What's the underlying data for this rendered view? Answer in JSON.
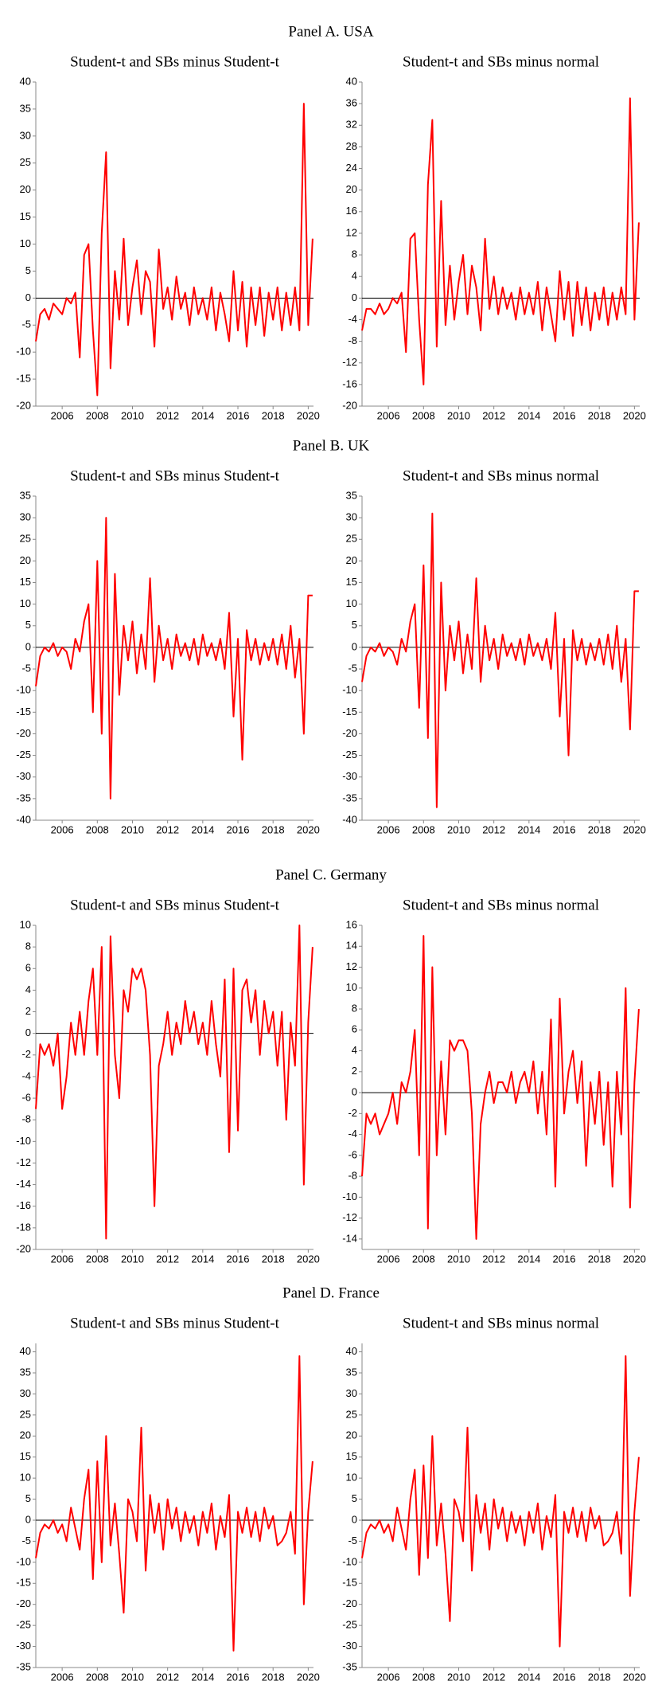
{
  "panels": [
    "Panel A. USA",
    "Panel B. UK",
    "Panel C. Germany",
    "Panel D. France"
  ],
  "chart_data": [
    {
      "type": "line",
      "title": "Student-t and SBs minus Student-t",
      "color": "#ff0000",
      "hline": 0,
      "xlim": [
        2004.5,
        2020.3
      ],
      "xticks": [
        2006,
        2008,
        2010,
        2012,
        2014,
        2016,
        2018,
        2020
      ],
      "ylim": [
        -20,
        40
      ],
      "yticks": [
        -20,
        -15,
        -10,
        -5,
        0,
        5,
        10,
        15,
        20,
        25,
        30,
        35,
        40
      ],
      "x": [
        2004.5,
        2004.75,
        2005,
        2005.25,
        2005.5,
        2005.75,
        2006,
        2006.25,
        2006.5,
        2006.75,
        2007,
        2007.25,
        2007.5,
        2007.75,
        2008,
        2008.25,
        2008.5,
        2008.75,
        2009,
        2009.25,
        2009.5,
        2009.75,
        2010,
        2010.25,
        2010.5,
        2010.75,
        2011,
        2011.25,
        2011.5,
        2011.75,
        2012,
        2012.25,
        2012.5,
        2012.75,
        2013,
        2013.25,
        2013.5,
        2013.75,
        2014,
        2014.25,
        2014.5,
        2014.75,
        2015,
        2015.25,
        2015.5,
        2015.75,
        2016,
        2016.25,
        2016.5,
        2016.75,
        2017,
        2017.25,
        2017.5,
        2017.75,
        2018,
        2018.25,
        2018.5,
        2018.75,
        2019,
        2019.25,
        2019.5,
        2019.75,
        2020,
        2020.25
      ],
      "values": [
        -8,
        -3,
        -2,
        -4,
        -1,
        -2,
        -3,
        0,
        -1,
        1,
        -11,
        8,
        10,
        -6,
        -18,
        12,
        27,
        -13,
        5,
        -4,
        11,
        -5,
        2,
        7,
        -3,
        5,
        3,
        -9,
        9,
        -2,
        2,
        -4,
        4,
        -2,
        1,
        -5,
        2,
        -3,
        0,
        -4,
        2,
        -6,
        1,
        -3,
        -8,
        5,
        -6,
        3,
        -9,
        2,
        -5,
        2,
        -7,
        1,
        -4,
        2,
        -6,
        1,
        -5,
        2,
        -6,
        36,
        -5,
        11
      ]
    },
    {
      "type": "line",
      "title": "Student-t and SBs minus normal",
      "color": "#ff0000",
      "hline": 0,
      "xlim": [
        2004.5,
        2020.3
      ],
      "xticks": [
        2006,
        2008,
        2010,
        2012,
        2014,
        2016,
        2018,
        2020
      ],
      "ylim": [
        -20,
        40
      ],
      "yticks": [
        -20,
        -16,
        -12,
        -8,
        -4,
        0,
        4,
        8,
        12,
        16,
        20,
        24,
        28,
        32,
        36,
        40
      ],
      "x": [
        2004.5,
        2004.75,
        2005,
        2005.25,
        2005.5,
        2005.75,
        2006,
        2006.25,
        2006.5,
        2006.75,
        2007,
        2007.25,
        2007.5,
        2007.75,
        2008,
        2008.25,
        2008.5,
        2008.75,
        2009,
        2009.25,
        2009.5,
        2009.75,
        2010,
        2010.25,
        2010.5,
        2010.75,
        2011,
        2011.25,
        2011.5,
        2011.75,
        2012,
        2012.25,
        2012.5,
        2012.75,
        2013,
        2013.25,
        2013.5,
        2013.75,
        2014,
        2014.25,
        2014.5,
        2014.75,
        2015,
        2015.25,
        2015.5,
        2015.75,
        2016,
        2016.25,
        2016.5,
        2016.75,
        2017,
        2017.25,
        2017.5,
        2017.75,
        2018,
        2018.25,
        2018.5,
        2018.75,
        2019,
        2019.25,
        2019.5,
        2019.75,
        2020,
        2020.25
      ],
      "values": [
        -6,
        -2,
        -2,
        -3,
        -1,
        -3,
        -2,
        0,
        -1,
        1,
        -10,
        11,
        12,
        -4,
        -16,
        21,
        33,
        -9,
        18,
        -5,
        6,
        -4,
        3,
        8,
        -3,
        6,
        2,
        -6,
        11,
        -2,
        4,
        -3,
        2,
        -2,
        1,
        -4,
        2,
        -3,
        1,
        -3,
        3,
        -6,
        2,
        -3,
        -8,
        5,
        -4,
        3,
        -7,
        3,
        -5,
        2,
        -6,
        1,
        -4,
        2,
        -5,
        1,
        -4,
        2,
        -3,
        37,
        -4,
        14
      ]
    },
    {
      "type": "line",
      "title": "Student-t and SBs minus Student-t",
      "color": "#ff0000",
      "hline": 0,
      "xlim": [
        2004.5,
        2020.3
      ],
      "xticks": [
        2006,
        2008,
        2010,
        2012,
        2014,
        2016,
        2018,
        2020
      ],
      "ylim": [
        -40,
        35
      ],
      "yticks": [
        -40,
        -35,
        -30,
        -25,
        -20,
        -15,
        -10,
        -5,
        0,
        5,
        10,
        15,
        20,
        25,
        30,
        35
      ],
      "x": [
        2004.5,
        2004.75,
        2005,
        2005.25,
        2005.5,
        2005.75,
        2006,
        2006.25,
        2006.5,
        2006.75,
        2007,
        2007.25,
        2007.5,
        2007.75,
        2008,
        2008.25,
        2008.5,
        2008.75,
        2009,
        2009.25,
        2009.5,
        2009.75,
        2010,
        2010.25,
        2010.5,
        2010.75,
        2011,
        2011.25,
        2011.5,
        2011.75,
        2012,
        2012.25,
        2012.5,
        2012.75,
        2013,
        2013.25,
        2013.5,
        2013.75,
        2014,
        2014.25,
        2014.5,
        2014.75,
        2015,
        2015.25,
        2015.5,
        2015.75,
        2016,
        2016.25,
        2016.5,
        2016.75,
        2017,
        2017.25,
        2017.5,
        2017.75,
        2018,
        2018.25,
        2018.5,
        2018.75,
        2019,
        2019.25,
        2019.5,
        2019.75,
        2020,
        2020.25
      ],
      "values": [
        -9,
        -2,
        0,
        -1,
        1,
        -2,
        0,
        -1,
        -5,
        2,
        -1,
        6,
        10,
        -15,
        20,
        -20,
        30,
        -35,
        17,
        -11,
        5,
        -3,
        6,
        -6,
        3,
        -5,
        16,
        -8,
        5,
        -3,
        2,
        -5,
        3,
        -2,
        1,
        -3,
        2,
        -4,
        3,
        -2,
        1,
        -3,
        2,
        -5,
        8,
        -16,
        2,
        -26,
        4,
        -3,
        2,
        -4,
        1,
        -3,
        2,
        -4,
        3,
        -5,
        5,
        -7,
        2,
        -20,
        12,
        12
      ]
    },
    {
      "type": "line",
      "title": "Student-t and SBs minus normal",
      "color": "#ff0000",
      "hline": 0,
      "xlim": [
        2004.5,
        2020.3
      ],
      "xticks": [
        2006,
        2008,
        2010,
        2012,
        2014,
        2016,
        2018,
        2020
      ],
      "ylim": [
        -40,
        35
      ],
      "yticks": [
        -40,
        -35,
        -30,
        -25,
        -20,
        -15,
        -10,
        -5,
        0,
        5,
        10,
        15,
        20,
        25,
        30,
        35
      ],
      "x": [
        2004.5,
        2004.75,
        2005,
        2005.25,
        2005.5,
        2005.75,
        2006,
        2006.25,
        2006.5,
        2006.75,
        2007,
        2007.25,
        2007.5,
        2007.75,
        2008,
        2008.25,
        2008.5,
        2008.75,
        2009,
        2009.25,
        2009.5,
        2009.75,
        2010,
        2010.25,
        2010.5,
        2010.75,
        2011,
        2011.25,
        2011.5,
        2011.75,
        2012,
        2012.25,
        2012.5,
        2012.75,
        2013,
        2013.25,
        2013.5,
        2013.75,
        2014,
        2014.25,
        2014.5,
        2014.75,
        2015,
        2015.25,
        2015.5,
        2015.75,
        2016,
        2016.25,
        2016.5,
        2016.75,
        2017,
        2017.25,
        2017.5,
        2017.75,
        2018,
        2018.25,
        2018.5,
        2018.75,
        2019,
        2019.25,
        2019.5,
        2019.75,
        2020,
        2020.25
      ],
      "values": [
        -8,
        -2,
        0,
        -1,
        1,
        -2,
        0,
        -1,
        -4,
        2,
        -1,
        6,
        10,
        -14,
        19,
        -21,
        31,
        -37,
        15,
        -10,
        5,
        -3,
        6,
        -6,
        3,
        -5,
        16,
        -8,
        5,
        -3,
        2,
        -5,
        3,
        -2,
        1,
        -3,
        2,
        -4,
        3,
        -2,
        1,
        -3,
        2,
        -5,
        8,
        -16,
        2,
        -25,
        4,
        -3,
        2,
        -4,
        1,
        -3,
        2,
        -4,
        3,
        -5,
        5,
        -8,
        2,
        -19,
        13,
        13
      ]
    },
    {
      "type": "line",
      "title": "Student-t and SBs minus Student-t",
      "color": "#ff0000",
      "hline": 0,
      "xlim": [
        2004.5,
        2020.3
      ],
      "xticks": [
        2006,
        2008,
        2010,
        2012,
        2014,
        2016,
        2018,
        2020
      ],
      "ylim": [
        -20,
        10
      ],
      "yticks": [
        -20,
        -18,
        -16,
        -14,
        -12,
        -10,
        -8,
        -6,
        -4,
        -2,
        0,
        2,
        4,
        6,
        8,
        10
      ],
      "x": [
        2004.5,
        2004.75,
        2005,
        2005.25,
        2005.5,
        2005.75,
        2006,
        2006.25,
        2006.5,
        2006.75,
        2007,
        2007.25,
        2007.5,
        2007.75,
        2008,
        2008.25,
        2008.5,
        2008.75,
        2009,
        2009.25,
        2009.5,
        2009.75,
        2010,
        2010.25,
        2010.5,
        2010.75,
        2011,
        2011.25,
        2011.5,
        2011.75,
        2012,
        2012.25,
        2012.5,
        2012.75,
        2013,
        2013.25,
        2013.5,
        2013.75,
        2014,
        2014.25,
        2014.5,
        2014.75,
        2015,
        2015.25,
        2015.5,
        2015.75,
        2016,
        2016.25,
        2016.5,
        2016.75,
        2017,
        2017.25,
        2017.5,
        2017.75,
        2018,
        2018.25,
        2018.5,
        2018.75,
        2019,
        2019.25,
        2019.5,
        2019.75,
        2020,
        2020.25
      ],
      "values": [
        -7,
        -1,
        -2,
        -1,
        -3,
        0,
        -7,
        -4,
        1,
        -2,
        2,
        -2,
        3,
        6,
        -2,
        8,
        -19,
        9,
        -2,
        -6,
        4,
        2,
        6,
        5,
        6,
        4,
        -2,
        -16,
        -3,
        -1,
        2,
        -2,
        1,
        -1,
        3,
        0,
        2,
        -1,
        1,
        -2,
        3,
        -1,
        -4,
        5,
        -11,
        6,
        -9,
        4,
        5,
        1,
        4,
        -2,
        3,
        0,
        2,
        -3,
        2,
        -8,
        1,
        -3,
        10,
        -14,
        1,
        8
      ]
    },
    {
      "type": "line",
      "title": "Student-t and SBs minus normal",
      "color": "#ff0000",
      "hline": 0,
      "xlim": [
        2004.5,
        2020.3
      ],
      "xticks": [
        2006,
        2008,
        2010,
        2012,
        2014,
        2016,
        2018,
        2020
      ],
      "ylim": [
        -15,
        16
      ],
      "yticks": [
        -14,
        -12,
        -10,
        -8,
        -6,
        -4,
        -2,
        0,
        2,
        4,
        6,
        8,
        10,
        12,
        14,
        16
      ],
      "x": [
        2004.5,
        2004.75,
        2005,
        2005.25,
        2005.5,
        2005.75,
        2006,
        2006.25,
        2006.5,
        2006.75,
        2007,
        2007.25,
        2007.5,
        2007.75,
        2008,
        2008.25,
        2008.5,
        2008.75,
        2009,
        2009.25,
        2009.5,
        2009.75,
        2010,
        2010.25,
        2010.5,
        2010.75,
        2011,
        2011.25,
        2011.5,
        2011.75,
        2012,
        2012.25,
        2012.5,
        2012.75,
        2013,
        2013.25,
        2013.5,
        2013.75,
        2014,
        2014.25,
        2014.5,
        2014.75,
        2015,
        2015.25,
        2015.5,
        2015.75,
        2016,
        2016.25,
        2016.5,
        2016.75,
        2017,
        2017.25,
        2017.5,
        2017.75,
        2018,
        2018.25,
        2018.5,
        2018.75,
        2019,
        2019.25,
        2019.5,
        2019.75,
        2020,
        2020.25
      ],
      "values": [
        -8,
        -2,
        -3,
        -2,
        -4,
        -3,
        -2,
        0,
        -3,
        1,
        0,
        2,
        6,
        -6,
        15,
        -13,
        12,
        -6,
        3,
        -4,
        5,
        4,
        5,
        5,
        4,
        -2,
        -14,
        -3,
        0,
        2,
        -1,
        1,
        1,
        0,
        2,
        -1,
        1,
        2,
        0,
        3,
        -2,
        2,
        -4,
        7,
        -9,
        9,
        -2,
        2,
        4,
        -1,
        3,
        -7,
        1,
        -3,
        2,
        -5,
        1,
        -9,
        2,
        -4,
        10,
        -11,
        1,
        8
      ]
    },
    {
      "type": "line",
      "title": "Student-t and SBs minus Student-t",
      "color": "#ff0000",
      "hline": 0,
      "xlim": [
        2004.5,
        2020.3
      ],
      "xticks": [
        2006,
        2008,
        2010,
        2012,
        2014,
        2016,
        2018,
        2020
      ],
      "ylim": [
        -35,
        42
      ],
      "yticks": [
        -35,
        -30,
        -25,
        -20,
        -15,
        -10,
        -5,
        0,
        5,
        10,
        15,
        20,
        25,
        30,
        35,
        40
      ],
      "x": [
        2004.5,
        2004.75,
        2005,
        2005.25,
        2005.5,
        2005.75,
        2006,
        2006.25,
        2006.5,
        2006.75,
        2007,
        2007.25,
        2007.5,
        2007.75,
        2008,
        2008.25,
        2008.5,
        2008.75,
        2009,
        2009.25,
        2009.5,
        2009.75,
        2010,
        2010.25,
        2010.5,
        2010.75,
        2011,
        2011.25,
        2011.5,
        2011.75,
        2012,
        2012.25,
        2012.5,
        2012.75,
        2013,
        2013.25,
        2013.5,
        2013.75,
        2014,
        2014.25,
        2014.5,
        2014.75,
        2015,
        2015.25,
        2015.5,
        2015.75,
        2016,
        2016.25,
        2016.5,
        2016.75,
        2017,
        2017.25,
        2017.5,
        2017.75,
        2018,
        2018.25,
        2018.5,
        2018.75,
        2019,
        2019.25,
        2019.5,
        2019.75,
        2020,
        2020.25
      ],
      "values": [
        -9,
        -3,
        -1,
        -2,
        0,
        -3,
        -1,
        -5,
        3,
        -2,
        -7,
        5,
        12,
        -14,
        14,
        -10,
        20,
        -6,
        4,
        -8,
        -22,
        5,
        2,
        -5,
        22,
        -12,
        6,
        -3,
        4,
        -7,
        5,
        -2,
        3,
        -5,
        2,
        -3,
        1,
        -6,
        2,
        -3,
        4,
        -7,
        1,
        -4,
        6,
        -31,
        2,
        -3,
        3,
        -4,
        2,
        -5,
        3,
        -2,
        1,
        -6,
        -5,
        -3,
        2,
        -8,
        39,
        -20,
        2,
        14
      ]
    },
    {
      "type": "line",
      "title": "Student-t and SBs minus normal",
      "color": "#ff0000",
      "hline": 0,
      "xlim": [
        2004.5,
        2020.3
      ],
      "xticks": [
        2006,
        2008,
        2010,
        2012,
        2014,
        2016,
        2018,
        2020
      ],
      "ylim": [
        -35,
        42
      ],
      "yticks": [
        -35,
        -30,
        -25,
        -20,
        -15,
        -10,
        -5,
        0,
        5,
        10,
        15,
        20,
        25,
        30,
        35,
        40
      ],
      "x": [
        2004.5,
        2004.75,
        2005,
        2005.25,
        2005.5,
        2005.75,
        2006,
        2006.25,
        2006.5,
        2006.75,
        2007,
        2007.25,
        2007.5,
        2007.75,
        2008,
        2008.25,
        2008.5,
        2008.75,
        2009,
        2009.25,
        2009.5,
        2009.75,
        2010,
        2010.25,
        2010.5,
        2010.75,
        2011,
        2011.25,
        2011.5,
        2011.75,
        2012,
        2012.25,
        2012.5,
        2012.75,
        2013,
        2013.25,
        2013.5,
        2013.75,
        2014,
        2014.25,
        2014.5,
        2014.75,
        2015,
        2015.25,
        2015.5,
        2015.75,
        2016,
        2016.25,
        2016.5,
        2016.75,
        2017,
        2017.25,
        2017.5,
        2017.75,
        2018,
        2018.25,
        2018.5,
        2018.75,
        2019,
        2019.25,
        2019.5,
        2019.75,
        2020,
        2020.25
      ],
      "values": [
        -9,
        -3,
        -1,
        -2,
        0,
        -3,
        -1,
        -5,
        3,
        -2,
        -7,
        5,
        12,
        -13,
        13,
        -9,
        20,
        -6,
        4,
        -8,
        -24,
        5,
        2,
        -5,
        22,
        -12,
        6,
        -3,
        4,
        -7,
        5,
        -2,
        3,
        -5,
        2,
        -3,
        1,
        -6,
        2,
        -3,
        4,
        -7,
        1,
        -4,
        6,
        -30,
        2,
        -3,
        3,
        -4,
        2,
        -5,
        3,
        -2,
        1,
        -6,
        -5,
        -3,
        2,
        -8,
        39,
        -18,
        2,
        15
      ]
    }
  ]
}
